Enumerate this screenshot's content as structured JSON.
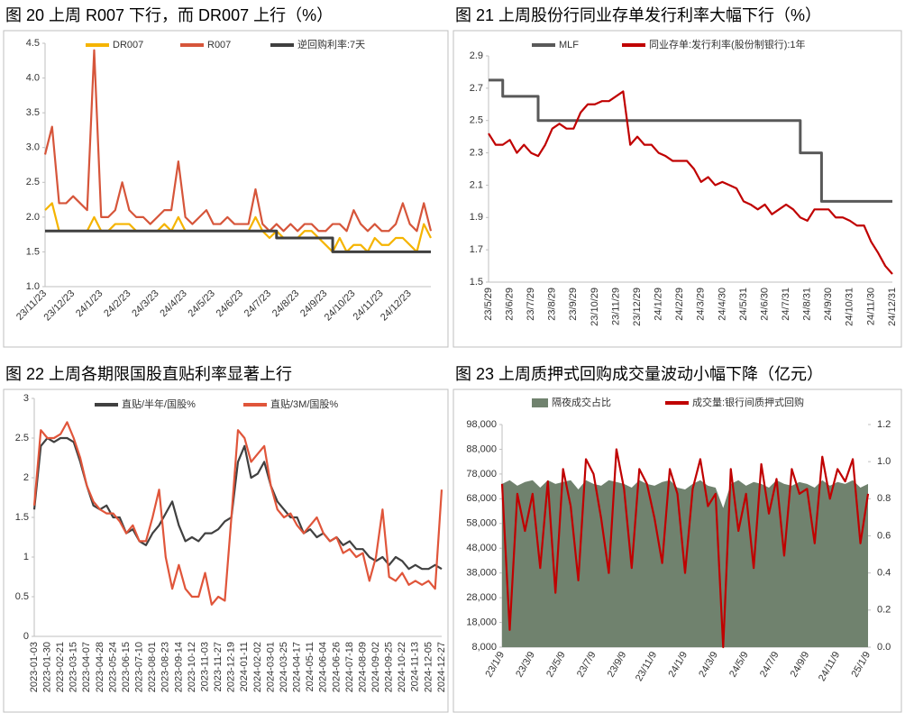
{
  "chart_data": [
    {
      "type": "line",
      "title": "图 20 上周 R007 下行，而 DR007 上行（%）",
      "categories": [
        "23/11/23",
        null,
        null,
        null,
        "23/12/23",
        null,
        null,
        null,
        "24/1/23",
        null,
        null,
        null,
        "24/2/23",
        null,
        null,
        null,
        "24/3/23",
        null,
        null,
        null,
        "24/4/23",
        null,
        null,
        null,
        "24/5/23",
        null,
        null,
        null,
        "24/6/23",
        null,
        null,
        null,
        "24/7/23",
        null,
        null,
        null,
        "24/8/23",
        null,
        null,
        null,
        "24/9/23",
        null,
        null,
        null,
        "24/10/23",
        null,
        null,
        null,
        "24/11/23",
        null,
        null,
        null,
        "24/12/23",
        null,
        null,
        null
      ],
      "ylim": [
        1.0,
        4.5
      ],
      "yticks": [
        {
          "value": 1.0,
          "label": "1.0"
        },
        1.5,
        {
          "value": 2.0,
          "label": "2.0"
        },
        2.5,
        {
          "value": 3.0,
          "label": "3.0"
        },
        3.5,
        {
          "value": 4.0,
          "label": "4.0"
        },
        4.5
      ],
      "series": [
        {
          "name": "DR007",
          "color": "#f5b400",
          "values": [
            2.1,
            2.2,
            1.8,
            1.8,
            1.8,
            1.8,
            1.8,
            2.0,
            1.8,
            1.8,
            1.9,
            1.9,
            1.9,
            1.8,
            1.8,
            1.8,
            1.8,
            1.9,
            1.8,
            2.0,
            1.8,
            1.8,
            1.8,
            1.8,
            1.8,
            1.8,
            1.8,
            1.8,
            1.8,
            1.8,
            2.0,
            1.8,
            1.7,
            1.8,
            1.7,
            1.7,
            1.7,
            1.8,
            1.8,
            1.7,
            1.6,
            1.5,
            1.7,
            1.5,
            1.6,
            1.6,
            1.5,
            1.7,
            1.6,
            1.6,
            1.7,
            1.7,
            1.6,
            1.5,
            1.9,
            1.7
          ]
        },
        {
          "name": "R007",
          "color": "#d6553a",
          "values": [
            2.9,
            3.3,
            2.2,
            2.2,
            2.3,
            2.2,
            2.1,
            4.4,
            2.0,
            2.0,
            2.1,
            2.5,
            2.1,
            2.0,
            2.0,
            1.9,
            2.0,
            2.1,
            2.1,
            2.8,
            2.0,
            1.9,
            2.0,
            2.1,
            1.9,
            1.9,
            2.0,
            1.9,
            1.9,
            1.9,
            2.4,
            1.9,
            1.8,
            1.9,
            1.8,
            1.9,
            1.8,
            1.9,
            1.9,
            1.8,
            1.8,
            1.9,
            1.9,
            1.8,
            2.1,
            1.9,
            1.8,
            1.9,
            1.8,
            1.8,
            1.9,
            2.2,
            1.9,
            1.8,
            2.2,
            1.8
          ]
        },
        {
          "name": "逆回购利率:7天",
          "color": "#3f3f3f",
          "step": true,
          "values": [
            1.8,
            1.8,
            1.8,
            1.8,
            1.8,
            1.8,
            1.8,
            1.8,
            1.8,
            1.8,
            1.8,
            1.8,
            1.8,
            1.8,
            1.8,
            1.8,
            1.8,
            1.8,
            1.8,
            1.8,
            1.8,
            1.8,
            1.8,
            1.8,
            1.8,
            1.8,
            1.8,
            1.8,
            1.8,
            1.8,
            1.8,
            1.8,
            1.8,
            1.7,
            1.7,
            1.7,
            1.7,
            1.7,
            1.7,
            1.7,
            1.7,
            1.5,
            1.5,
            1.5,
            1.5,
            1.5,
            1.5,
            1.5,
            1.5,
            1.5,
            1.5,
            1.5,
            1.5,
            1.5,
            1.5,
            1.5
          ]
        }
      ]
    },
    {
      "type": "line",
      "title": "图 21 上周股份行同业存单发行利率大幅下行（%）",
      "categories": [
        "23/5/29",
        null,
        null,
        "23/6/29",
        null,
        null,
        "23/7/29",
        null,
        null,
        "23/8/29",
        null,
        null,
        "23/9/29",
        null,
        null,
        "23/10/29",
        null,
        null,
        "23/11/29",
        null,
        null,
        "23/12/29",
        null,
        null,
        "24/1/29",
        null,
        null,
        "24/2/29",
        null,
        null,
        "24/3/29",
        null,
        null,
        "24/4/30",
        null,
        null,
        "24/5/31",
        null,
        null,
        "24/6/30",
        null,
        null,
        "24/7/31",
        null,
        null,
        "24/8/31",
        null,
        null,
        "24/9/30",
        null,
        null,
        "24/10/31",
        null,
        null,
        "24/11/30",
        null,
        null,
        "24/12/31"
      ],
      "ylim": [
        1.5,
        2.9
      ],
      "yticks": [
        1.5,
        1.7,
        1.9,
        2.1,
        2.3,
        2.5,
        2.7,
        2.9
      ],
      "series": [
        {
          "name": "MLF",
          "color": "#595959",
          "step": true,
          "values": [
            2.75,
            2.75,
            2.65,
            2.65,
            2.65,
            2.65,
            2.65,
            2.5,
            2.5,
            2.5,
            2.5,
            2.5,
            2.5,
            2.5,
            2.5,
            2.5,
            2.5,
            2.5,
            2.5,
            2.5,
            2.5,
            2.5,
            2.5,
            2.5,
            2.5,
            2.5,
            2.5,
            2.5,
            2.5,
            2.5,
            2.5,
            2.5,
            2.5,
            2.5,
            2.5,
            2.5,
            2.5,
            2.5,
            2.5,
            2.5,
            2.5,
            2.5,
            2.5,
            2.5,
            2.3,
            2.3,
            2.3,
            2.0,
            2.0,
            2.0,
            2.0,
            2.0,
            2.0,
            2.0,
            2.0,
            2.0,
            2.0,
            2.0
          ]
        },
        {
          "name": "同业存单:发行利率(股份制银行):1年",
          "color": "#c00000",
          "values": [
            2.42,
            2.35,
            2.35,
            2.38,
            2.3,
            2.35,
            2.3,
            2.28,
            2.35,
            2.45,
            2.48,
            2.45,
            2.45,
            2.55,
            2.6,
            2.6,
            2.62,
            2.62,
            2.65,
            2.68,
            2.35,
            2.4,
            2.35,
            2.35,
            2.3,
            2.28,
            2.25,
            2.25,
            2.25,
            2.2,
            2.12,
            2.15,
            2.1,
            2.12,
            2.1,
            2.08,
            2.0,
            1.98,
            1.95,
            1.98,
            1.92,
            1.95,
            1.98,
            1.95,
            1.9,
            1.88,
            1.95,
            1.95,
            1.95,
            1.9,
            1.9,
            1.88,
            1.85,
            1.85,
            1.75,
            1.68,
            1.6,
            1.55
          ]
        }
      ]
    },
    {
      "type": "line",
      "title": "图 22 上周各期限国股直贴利率显著上行",
      "categories": [
        "2023-01-03",
        null,
        "2023-01-30",
        null,
        "2023-02-21",
        null,
        "2023-03-15",
        null,
        "2023-04-07",
        null,
        "2023-04-28",
        null,
        "2023-05-24",
        null,
        "2023-06-15",
        null,
        "2023-07-10",
        null,
        "2023-08-01",
        null,
        "2023-08-23",
        null,
        "2023-09-14",
        null,
        "2023-10-12",
        null,
        "2023-11-03",
        null,
        "2023-11-27",
        null,
        "2023-12-19",
        null,
        "2024-01-11",
        null,
        "2024-02-02",
        null,
        "2024-03-01",
        null,
        "2024-03-25",
        null,
        "2024-04-17",
        null,
        "2024-05-11",
        null,
        "2024-06-04",
        null,
        "2024-06-26",
        null,
        "2024-07-18",
        null,
        "2024-08-09",
        null,
        "2024-09-02",
        null,
        "2024-09-25",
        null,
        "2024-10-22",
        null,
        "2024-11-13",
        null,
        "2024-12-05",
        null,
        "2024-12-27"
      ],
      "ylim": [
        0,
        3
      ],
      "yticks": [
        0,
        0.5,
        1,
        1.5,
        2,
        2.5,
        3
      ],
      "series": [
        {
          "name": "直贴/半年/国股%",
          "color": "#404040",
          "values": [
            1.6,
            2.4,
            2.5,
            2.45,
            2.5,
            2.5,
            2.45,
            2.2,
            1.9,
            1.65,
            1.6,
            1.65,
            1.5,
            1.5,
            1.3,
            1.35,
            1.2,
            1.15,
            1.3,
            1.4,
            1.55,
            1.7,
            1.4,
            1.2,
            1.25,
            1.2,
            1.3,
            1.3,
            1.35,
            1.45,
            1.5,
            2.2,
            2.4,
            2.0,
            2.05,
            2.2,
            1.9,
            1.7,
            1.6,
            1.5,
            1.5,
            1.3,
            1.35,
            1.25,
            1.3,
            1.2,
            1.25,
            1.15,
            1.2,
            1.1,
            1.1,
            1.0,
            0.95,
            1.0,
            0.9,
            1.0,
            0.95,
            0.85,
            0.9,
            0.85,
            0.85,
            0.9,
            0.85
          ]
        },
        {
          "name": "直贴/3M/国股%",
          "color": "#e0553a",
          "values": [
            1.65,
            2.6,
            2.5,
            2.5,
            2.55,
            2.7,
            2.5,
            2.25,
            1.9,
            1.7,
            1.6,
            1.55,
            1.55,
            1.45,
            1.3,
            1.4,
            1.2,
            1.2,
            1.5,
            1.85,
            1.0,
            0.6,
            0.9,
            0.6,
            0.5,
            0.5,
            0.8,
            0.4,
            0.5,
            0.45,
            1.5,
            2.6,
            2.5,
            2.2,
            2.3,
            2.4,
            1.9,
            1.6,
            1.5,
            1.55,
            1.4,
            1.3,
            1.4,
            1.5,
            1.3,
            1.2,
            1.25,
            1.05,
            1.1,
            1.0,
            1.05,
            0.7,
            1.0,
            1.6,
            0.75,
            0.7,
            0.8,
            0.65,
            0.7,
            0.65,
            0.7,
            0.6,
            1.85
          ]
        }
      ]
    },
    {
      "type": "line",
      "title": "图 23 上周质押式回购成交量波动小幅下降（亿元）",
      "categories": [
        "23/1/9",
        null,
        null,
        null,
        "23/3/9",
        null,
        null,
        null,
        "23/5/9",
        null,
        null,
        null,
        "23/7/9",
        null,
        null,
        null,
        "23/9/9",
        null,
        null,
        null,
        "23/11/9",
        null,
        null,
        null,
        "24/1/9",
        null,
        null,
        null,
        "24/3/9",
        null,
        null,
        null,
        "24/5/9",
        null,
        null,
        null,
        "24/7/9",
        null,
        null,
        null,
        "24/9/9",
        null,
        null,
        null,
        "24/11/9",
        null,
        null,
        null,
        "25/1/9"
      ],
      "ylim": [
        8000,
        98000
      ],
      "yticks": [
        {
          "value": 8000,
          "label": "8,000"
        },
        {
          "value": 18000,
          "label": "18,000"
        },
        {
          "value": 28000,
          "label": "28,000"
        },
        {
          "value": 38000,
          "label": "38,000"
        },
        {
          "value": 48000,
          "label": "48,000"
        },
        {
          "value": 58000,
          "label": "58,000"
        },
        {
          "value": 68000,
          "label": "68,000"
        },
        {
          "value": 78000,
          "label": "78,000"
        },
        {
          "value": 88000,
          "label": "88,000"
        },
        {
          "value": 98000,
          "label": "98,000"
        }
      ],
      "y2lim": [
        0,
        1.2
      ],
      "y2ticks": [
        {
          "value": 0,
          "label": "0.0"
        },
        0.2,
        0.4,
        0.6,
        0.8,
        {
          "value": 1,
          "label": "1.0"
        },
        1.2
      ],
      "series": [
        {
          "name": "隔夜成交占比",
          "color": "#70826e",
          "axis": "y2",
          "style": "area",
          "values": [
            0.88,
            0.9,
            0.87,
            0.89,
            0.9,
            0.86,
            0.9,
            0.88,
            0.89,
            0.9,
            0.85,
            0.9,
            0.88,
            0.87,
            0.9,
            0.89,
            0.88,
            0.86,
            0.9,
            0.88,
            0.87,
            0.89,
            0.9,
            0.86,
            0.85,
            0.88,
            0.9,
            0.87,
            0.86,
            0.75,
            0.88,
            0.9,
            0.87,
            0.89,
            0.88,
            0.86,
            0.9,
            0.88,
            0.87,
            0.89,
            0.88,
            0.86,
            0.9,
            0.87,
            0.89,
            0.88,
            0.9,
            0.86,
            0.88
          ]
        },
        {
          "name": "成交量:银行间质押式回购",
          "color": "#c00000",
          "values": [
            74000,
            15000,
            70000,
            55000,
            70000,
            40000,
            75000,
            30000,
            80000,
            65000,
            35000,
            84000,
            78000,
            60000,
            38000,
            88000,
            72000,
            40000,
            80000,
            74000,
            60000,
            42000,
            80000,
            70000,
            38000,
            72000,
            84000,
            65000,
            70000,
            8000,
            80000,
            55000,
            70000,
            40000,
            82000,
            62000,
            76000,
            45000,
            80000,
            70000,
            72000,
            50000,
            85000,
            68000,
            80000,
            75000,
            84000,
            50000,
            70000
          ]
        }
      ]
    }
  ]
}
